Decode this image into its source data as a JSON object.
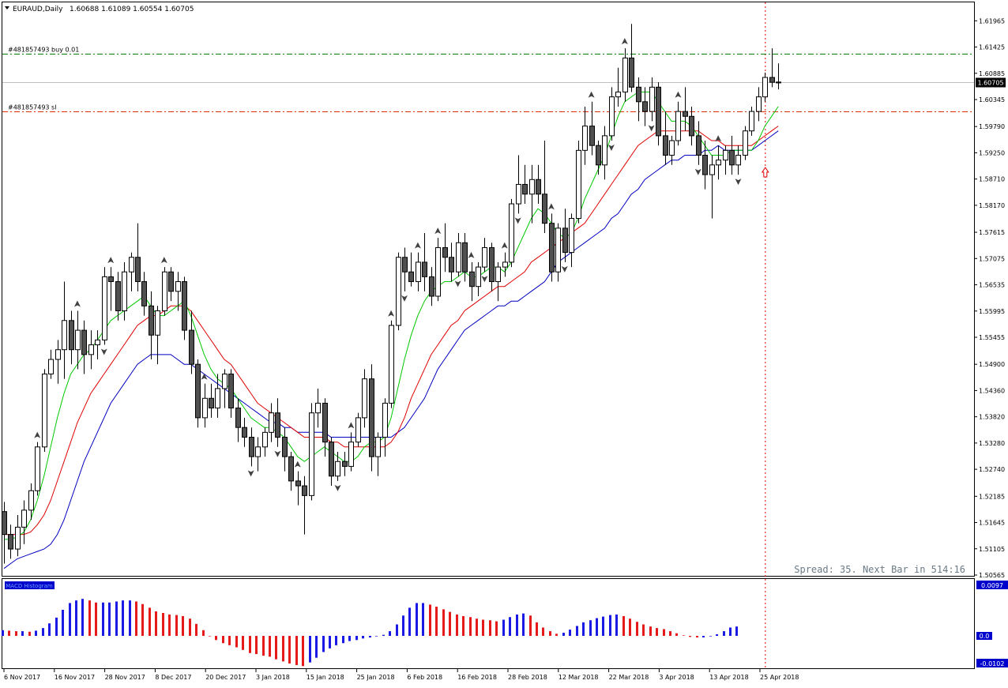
{
  "header": {
    "symbol_label": "EURAUD,Daily",
    "ohlc_label": "1.60688 1.61089 1.60554 1.60705"
  },
  "orders": [
    {
      "label": "#481857493 buy 0.01",
      "price": 1.6129,
      "color": "#008000"
    },
    {
      "label": "#481857493 sl",
      "price": 1.601,
      "color": "#e03000"
    }
  ],
  "current_price": {
    "label": "1.60705",
    "price": 1.60705
  },
  "price_axis": {
    "min": 1.50565,
    "max": 1.6223,
    "ticks": [
      "1.61965",
      "1.61425",
      "1.60885",
      "1.60345",
      "1.59790",
      "1.59250",
      "1.58710",
      "1.58170",
      "1.57615",
      "1.57075",
      "1.56535",
      "1.55995",
      "1.55455",
      "1.54900",
      "1.54360",
      "1.53820",
      "1.53280",
      "1.52740",
      "1.52185",
      "1.51645",
      "1.51105",
      "1.50565"
    ]
  },
  "date_axis": {
    "labels": [
      "6 Nov 2017",
      "16 Nov 2017",
      "28 Nov 2017",
      "8 Dec 2017",
      "20 Dec 2017",
      "3 Jan 2018",
      "15 Jan 2018",
      "25 Jan 2018",
      "6 Feb 2018",
      "16 Feb 2018",
      "28 Feb 2018",
      "12 Mar 2018",
      "22 Mar 2018",
      "3 Apr 2018",
      "13 Apr 2018",
      "25 Apr 2018"
    ]
  },
  "status_text": "Spread: 35. Next Bar in 514:16",
  "indicator": {
    "top_value_label": "0.0097",
    "zero_label": "0.0",
    "bottom_value_label": "-0.0102",
    "name_label": "MACD Histogram"
  },
  "colors": {
    "bull_candle": "#ffffff",
    "bear_candle": "#505050",
    "ma_fast": "#00c800",
    "ma_mid": "#e00000",
    "ma_slow": "#0000c0",
    "hist_up": "#1a1ae6",
    "hist_down": "#e61a1a",
    "axis_label_bg": "#000000",
    "indicator_label_bg": "#0000cc",
    "vline": "#e00000"
  },
  "chart_data": {
    "type": "candlestick",
    "symbol": "EURAUD",
    "timeframe": "Daily",
    "candles": [
      [
        1.5187,
        1.5207,
        1.508,
        1.514
      ],
      [
        1.514,
        1.516,
        1.509,
        1.511
      ],
      [
        1.511,
        1.518,
        1.5095,
        1.5155
      ],
      [
        1.5155,
        1.521,
        1.512,
        1.519
      ],
      [
        1.519,
        1.5245,
        1.517,
        1.523
      ],
      [
        1.523,
        1.533,
        1.522,
        1.532
      ],
      [
        1.532,
        1.548,
        1.531,
        1.547
      ],
      [
        1.547,
        1.552,
        1.546,
        1.55
      ],
      [
        1.55,
        1.554,
        1.545,
        1.552
      ],
      [
        1.552,
        1.566,
        1.546,
        1.558
      ],
      [
        1.558,
        1.56,
        1.549,
        1.552
      ],
      [
        1.552,
        1.56,
        1.548,
        1.556
      ],
      [
        1.556,
        1.558,
        1.547,
        1.551
      ],
      [
        1.551,
        1.556,
        1.548,
        1.553
      ],
      [
        1.553,
        1.556,
        1.55,
        1.554
      ],
      [
        1.554,
        1.569,
        1.553,
        1.567
      ],
      [
        1.567,
        1.569,
        1.56,
        1.566
      ],
      [
        1.566,
        1.568,
        1.558,
        1.56
      ],
      [
        1.56,
        1.57,
        1.558,
        1.568
      ],
      [
        1.568,
        1.572,
        1.564,
        1.571
      ],
      [
        1.571,
        1.578,
        1.564,
        1.566
      ],
      [
        1.566,
        1.568,
        1.559,
        1.561
      ],
      [
        1.561,
        1.564,
        1.55,
        1.555
      ],
      [
        1.555,
        1.561,
        1.549,
        1.56
      ],
      [
        1.56,
        1.569,
        1.559,
        1.568
      ],
      [
        1.568,
        1.569,
        1.562,
        1.564
      ],
      [
        1.564,
        1.568,
        1.56,
        1.566
      ],
      [
        1.566,
        1.567,
        1.554,
        1.556
      ],
      [
        1.556,
        1.56,
        1.547,
        1.549
      ],
      [
        1.549,
        1.55,
        1.536,
        1.538
      ],
      [
        1.538,
        1.545,
        1.536,
        1.542
      ],
      [
        1.542,
        1.545,
        1.538,
        1.54
      ],
      [
        1.54,
        1.547,
        1.538,
        1.544
      ],
      [
        1.544,
        1.548,
        1.54,
        1.547
      ],
      [
        1.547,
        1.548,
        1.538,
        1.54
      ],
      [
        1.54,
        1.542,
        1.533,
        1.536
      ],
      [
        1.536,
        1.538,
        1.532,
        1.534
      ],
      [
        1.534,
        1.536,
        1.528,
        1.53
      ],
      [
        1.53,
        1.534,
        1.527,
        1.532
      ],
      [
        1.532,
        1.536,
        1.53,
        1.535
      ],
      [
        1.535,
        1.541,
        1.533,
        1.539
      ],
      [
        1.539,
        1.542,
        1.532,
        1.534
      ],
      [
        1.534,
        1.536,
        1.527,
        1.53
      ],
      [
        1.53,
        1.531,
        1.523,
        1.525
      ],
      [
        1.525,
        1.527,
        1.52,
        1.524
      ],
      [
        1.524,
        1.526,
        1.514,
        1.522
      ],
      [
        1.522,
        1.541,
        1.521,
        1.539
      ],
      [
        1.539,
        1.544,
        1.536,
        1.541
      ],
      [
        1.541,
        1.542,
        1.53,
        1.533
      ],
      [
        1.533,
        1.534,
        1.524,
        1.526
      ],
      [
        1.526,
        1.531,
        1.525,
        1.529
      ],
      [
        1.529,
        1.531,
        1.526,
        1.528
      ],
      [
        1.528,
        1.535,
        1.527,
        1.533
      ],
      [
        1.533,
        1.539,
        1.532,
        1.538
      ],
      [
        1.538,
        1.548,
        1.536,
        1.546
      ],
      [
        1.546,
        1.549,
        1.527,
        1.53
      ],
      [
        1.53,
        1.535,
        1.526,
        1.534
      ],
      [
        1.534,
        1.542,
        1.53,
        1.541
      ],
      [
        1.541,
        1.558,
        1.54,
        1.557
      ],
      [
        1.557,
        1.572,
        1.556,
        1.571
      ],
      [
        1.571,
        1.573,
        1.564,
        1.568
      ],
      [
        1.568,
        1.572,
        1.565,
        1.566
      ],
      [
        1.566,
        1.572,
        1.564,
        1.57
      ],
      [
        1.57,
        1.576,
        1.564,
        1.567
      ],
      [
        1.567,
        1.569,
        1.561,
        1.563
      ],
      [
        1.563,
        1.575,
        1.562,
        1.573
      ],
      [
        1.573,
        1.578,
        1.568,
        1.571
      ],
      [
        1.571,
        1.574,
        1.566,
        1.568
      ],
      [
        1.568,
        1.576,
        1.567,
        1.574
      ],
      [
        1.574,
        1.576,
        1.566,
        1.568
      ],
      [
        1.568,
        1.57,
        1.562,
        1.565
      ],
      [
        1.565,
        1.57,
        1.563,
        1.569
      ],
      [
        1.569,
        1.575,
        1.568,
        1.573
      ],
      [
        1.573,
        1.574,
        1.564,
        1.566
      ],
      [
        1.566,
        1.57,
        1.562,
        1.569
      ],
      [
        1.569,
        1.572,
        1.567,
        1.57
      ],
      [
        1.57,
        1.583,
        1.569,
        1.582
      ],
      [
        1.582,
        1.592,
        1.58,
        1.586
      ],
      [
        1.586,
        1.59,
        1.582,
        1.584
      ],
      [
        1.584,
        1.59,
        1.578,
        1.587
      ],
      [
        1.587,
        1.59,
        1.582,
        1.584
      ],
      [
        1.584,
        1.595,
        1.576,
        1.578
      ],
      [
        1.578,
        1.58,
        1.566,
        1.568
      ],
      [
        1.568,
        1.578,
        1.566,
        1.577
      ],
      [
        1.577,
        1.581,
        1.57,
        1.572
      ],
      [
        1.572,
        1.58,
        1.569,
        1.579
      ],
      [
        1.579,
        1.595,
        1.578,
        1.593
      ],
      [
        1.593,
        1.602,
        1.59,
        1.598
      ],
      [
        1.598,
        1.603,
        1.592,
        1.594
      ],
      [
        1.594,
        1.595,
        1.588,
        1.59
      ],
      [
        1.59,
        1.598,
        1.587,
        1.596
      ],
      [
        1.596,
        1.606,
        1.595,
        1.604
      ],
      [
        1.604,
        1.61,
        1.602,
        1.605
      ],
      [
        1.605,
        1.614,
        1.603,
        1.612
      ],
      [
        1.612,
        1.619,
        1.605,
        1.606
      ],
      [
        1.606,
        1.608,
        1.599,
        1.603
      ],
      [
        1.603,
        1.606,
        1.598,
        1.601
      ],
      [
        1.601,
        1.608,
        1.599,
        1.606
      ],
      [
        1.606,
        1.607,
        1.594,
        1.596
      ],
      [
        1.596,
        1.601,
        1.59,
        1.592
      ],
      [
        1.592,
        1.596,
        1.59,
        1.595
      ],
      [
        1.595,
        1.603,
        1.594,
        1.601
      ],
      [
        1.601,
        1.606,
        1.597,
        1.6
      ],
      [
        1.6,
        1.602,
        1.594,
        1.596
      ],
      [
        1.596,
        1.599,
        1.59,
        1.592
      ],
      [
        1.592,
        1.595,
        1.585,
        1.588
      ],
      [
        1.588,
        1.592,
        1.579,
        1.59
      ],
      [
        1.59,
        1.594,
        1.587,
        1.591
      ],
      [
        1.591,
        1.594,
        1.588,
        1.593
      ],
      [
        1.593,
        1.596,
        1.588,
        1.59
      ],
      [
        1.59,
        1.594,
        1.588,
        1.592
      ],
      [
        1.592,
        1.598,
        1.591,
        1.597
      ],
      [
        1.597,
        1.602,
        1.596,
        1.601
      ],
      [
        1.601,
        1.606,
        1.599,
        1.604
      ],
      [
        1.604,
        1.609,
        1.603,
        1.608
      ],
      [
        1.608,
        1.614,
        1.606,
        1.607
      ],
      [
        1.60688,
        1.61089,
        1.60554,
        1.60705
      ]
    ],
    "ma_fast": [
      1.513,
      1.513,
      1.5135,
      1.5145,
      1.517,
      1.521,
      1.526,
      1.532,
      1.538,
      1.543,
      1.547,
      1.549,
      1.551,
      1.552,
      1.554,
      1.556,
      1.558,
      1.559,
      1.56,
      1.561,
      1.562,
      1.563,
      1.561,
      1.559,
      1.559,
      1.56,
      1.561,
      1.562,
      1.559,
      1.555,
      1.551,
      1.548,
      1.546,
      1.545,
      1.544,
      1.542,
      1.54,
      1.538,
      1.537,
      1.536,
      1.536,
      1.535,
      1.534,
      1.532,
      1.53,
      1.529,
      1.53,
      1.531,
      1.532,
      1.531,
      1.53,
      1.529,
      1.529,
      1.53,
      1.532,
      1.533,
      1.533,
      1.534,
      1.538,
      1.544,
      1.55,
      1.555,
      1.559,
      1.562,
      1.564,
      1.565,
      1.566,
      1.566,
      1.567,
      1.568,
      1.567,
      1.567,
      1.568,
      1.569,
      1.569,
      1.568,
      1.57,
      1.573,
      1.576,
      1.579,
      1.581,
      1.58,
      1.578,
      1.576,
      1.575,
      1.576,
      1.579,
      1.583,
      1.586,
      1.589,
      1.592,
      1.596,
      1.6,
      1.603,
      1.604,
      1.605,
      1.605,
      1.605,
      1.603,
      1.601,
      1.599,
      1.599,
      1.599,
      1.598,
      1.596,
      1.594,
      1.592,
      1.592,
      1.592,
      1.593,
      1.593,
      1.593,
      1.593,
      1.595,
      1.598,
      1.6,
      1.602
    ],
    "ma_mid": [
      1.514,
      1.514,
      1.514,
      1.514,
      1.5145,
      1.516,
      1.518,
      1.521,
      1.525,
      1.529,
      1.533,
      1.537,
      1.54,
      1.543,
      1.545,
      1.547,
      1.549,
      1.551,
      1.553,
      1.555,
      1.557,
      1.558,
      1.559,
      1.559,
      1.56,
      1.561,
      1.561,
      1.561,
      1.56,
      1.558,
      1.556,
      1.554,
      1.552,
      1.55,
      1.549,
      1.547,
      1.545,
      1.543,
      1.541,
      1.54,
      1.539,
      1.538,
      1.537,
      1.536,
      1.535,
      1.534,
      1.534,
      1.534,
      1.534,
      1.533,
      1.533,
      1.532,
      1.532,
      1.532,
      1.532,
      1.532,
      1.532,
      1.532,
      1.533,
      1.535,
      1.538,
      1.542,
      1.545,
      1.548,
      1.551,
      1.553,
      1.555,
      1.557,
      1.558,
      1.56,
      1.561,
      1.562,
      1.563,
      1.564,
      1.565,
      1.565,
      1.566,
      1.567,
      1.568,
      1.57,
      1.571,
      1.572,
      1.573,
      1.574,
      1.575,
      1.576,
      1.577,
      1.578,
      1.58,
      1.582,
      1.584,
      1.586,
      1.588,
      1.59,
      1.592,
      1.594,
      1.595,
      1.596,
      1.597,
      1.597,
      1.597,
      1.597,
      1.597,
      1.597,
      1.597,
      1.596,
      1.595,
      1.595,
      1.594,
      1.594,
      1.594,
      1.594,
      1.594,
      1.595,
      1.596,
      1.597,
      1.598
    ],
    "ma_slow": [
      1.507,
      1.508,
      1.509,
      1.5095,
      1.51,
      1.5105,
      1.511,
      1.512,
      1.514,
      1.517,
      1.521,
      1.525,
      1.529,
      1.532,
      1.535,
      1.538,
      1.541,
      1.543,
      1.545,
      1.547,
      1.549,
      1.55,
      1.551,
      1.551,
      1.551,
      1.551,
      1.55,
      1.549,
      1.549,
      1.548,
      1.547,
      1.546,
      1.545,
      1.544,
      1.543,
      1.542,
      1.541,
      1.54,
      1.539,
      1.538,
      1.537,
      1.537,
      1.536,
      1.536,
      1.535,
      1.535,
      1.535,
      1.535,
      1.535,
      1.534,
      1.534,
      1.534,
      1.534,
      1.534,
      1.534,
      1.534,
      1.534,
      1.534,
      1.534,
      1.535,
      1.536,
      1.538,
      1.54,
      1.542,
      1.545,
      1.548,
      1.55,
      1.552,
      1.554,
      1.556,
      1.557,
      1.558,
      1.559,
      1.56,
      1.561,
      1.561,
      1.562,
      1.562,
      1.563,
      1.564,
      1.565,
      1.566,
      1.568,
      1.57,
      1.571,
      1.572,
      1.573,
      1.574,
      1.575,
      1.576,
      1.577,
      1.579,
      1.58,
      1.582,
      1.584,
      1.585,
      1.587,
      1.588,
      1.589,
      1.59,
      1.591,
      1.591,
      1.592,
      1.592,
      1.592,
      1.593,
      1.593,
      1.594,
      1.593,
      1.593,
      1.593,
      1.593,
      1.593,
      1.594,
      1.595,
      1.596,
      1.597
    ],
    "arrows": [
      [
        5,
        "up"
      ],
      [
        11,
        "up"
      ],
      [
        15,
        "down"
      ],
      [
        16,
        "up"
      ],
      [
        24,
        "up"
      ],
      [
        30,
        "up"
      ],
      [
        37,
        "down"
      ],
      [
        41,
        "down"
      ],
      [
        44,
        "up"
      ],
      [
        50,
        "down"
      ],
      [
        52,
        "up"
      ],
      [
        58,
        "up"
      ],
      [
        60,
        "down"
      ],
      [
        62,
        "up"
      ],
      [
        65,
        "up"
      ],
      [
        68,
        "down"
      ],
      [
        70,
        "up"
      ],
      [
        72,
        "down"
      ],
      [
        75,
        "up"
      ],
      [
        77,
        "down"
      ],
      [
        82,
        "up"
      ],
      [
        84,
        "down"
      ],
      [
        88,
        "up"
      ],
      [
        91,
        "down"
      ],
      [
        93,
        "up"
      ],
      [
        97,
        "down"
      ],
      [
        101,
        "up"
      ],
      [
        104,
        "down"
      ],
      [
        107,
        "up"
      ],
      [
        110,
        "down"
      ]
    ],
    "histogram": [
      0.0011,
      0.001,
      0.0009,
      0.0009,
      0.0008,
      0.001,
      0.0015,
      0.0024,
      0.0035,
      0.005,
      0.0063,
      0.0068,
      0.0071,
      0.0068,
      0.0064,
      0.0064,
      0.0064,
      0.0066,
      0.0068,
      0.0068,
      0.0066,
      0.0061,
      0.0054,
      0.0047,
      0.0044,
      0.0041,
      0.004,
      0.0038,
      0.0033,
      0.0023,
      0.0011,
      -0.0001,
      -0.0008,
      -0.0014,
      -0.0018,
      -0.0022,
      -0.0027,
      -0.0033,
      -0.0035,
      -0.0038,
      -0.004,
      -0.0045,
      -0.0049,
      -0.0053,
      -0.0056,
      -0.0058,
      -0.0051,
      -0.0042,
      -0.0031,
      -0.0024,
      -0.0018,
      -0.0014,
      -0.001,
      -0.0008,
      -0.0005,
      -0.0003,
      -0.0001,
      0.0002,
      0.0009,
      0.0022,
      0.0039,
      0.0054,
      0.0063,
      0.0063,
      0.006,
      0.0056,
      0.0051,
      0.0046,
      0.0041,
      0.0038,
      0.0036,
      0.0033,
      0.0031,
      0.003,
      0.0028,
      0.0031,
      0.0036,
      0.0041,
      0.0043,
      0.0039,
      0.0026,
      0.0016,
      0.0009,
      0.0004,
      0.0006,
      0.0012,
      0.0019,
      0.0026,
      0.003,
      0.0034,
      0.0037,
      0.004,
      0.0041,
      0.0038,
      0.0033,
      0.0027,
      0.0022,
      0.0018,
      0.0015,
      0.0013,
      0.0009,
      0.0005,
      0.0001,
      -0.0002,
      -0.0003,
      -0.0003,
      -0.0001,
      0.0003,
      0.0009,
      0.0016,
      0.0018
    ]
  }
}
